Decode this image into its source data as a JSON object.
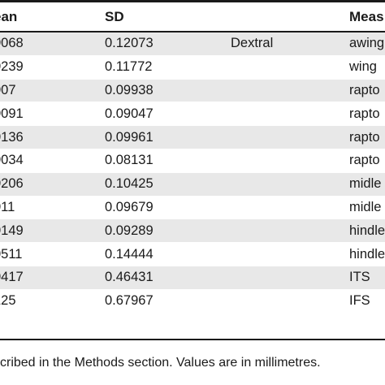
{
  "table": {
    "headers": {
      "mean": "ean",
      "sd": "SD",
      "side": "",
      "measure": "Meas"
    },
    "rows": [
      {
        "mean": "0068",
        "sd": "0.12073",
        "side": "Dextral",
        "measure": "awing"
      },
      {
        "mean": "0239",
        "sd": "0.11772",
        "side": "",
        "measure": "wing"
      },
      {
        "mean": "007",
        "sd": "0.09938",
        "side": "",
        "measure": "rapto"
      },
      {
        "mean": "0091",
        "sd": "0.09047",
        "side": "",
        "measure": "rapto"
      },
      {
        "mean": "0136",
        "sd": "0.09961",
        "side": "",
        "measure": "rapto"
      },
      {
        "mean": "0034",
        "sd": "0.08131",
        "side": "",
        "measure": "rapto"
      },
      {
        "mean": "0206",
        "sd": "0.10425",
        "side": "",
        "measure": "midle"
      },
      {
        "mean": "011",
        "sd": "0.09679",
        "side": "",
        "measure": "midle"
      },
      {
        "mean": "0149",
        "sd": "0.09289",
        "side": "",
        "measure": "hindle"
      },
      {
        "mean": "0511",
        "sd": "0.14444",
        "side": "",
        "measure": "hindle"
      },
      {
        "mean": "0417",
        "sd": "0.46431",
        "side": "",
        "measure": "ITS"
      },
      {
        "mean": "125",
        "sd": "0.67967",
        "side": "",
        "measure": "IFS"
      }
    ]
  },
  "footnote": "cribed in the Methods section. Values are in millimetres."
}
